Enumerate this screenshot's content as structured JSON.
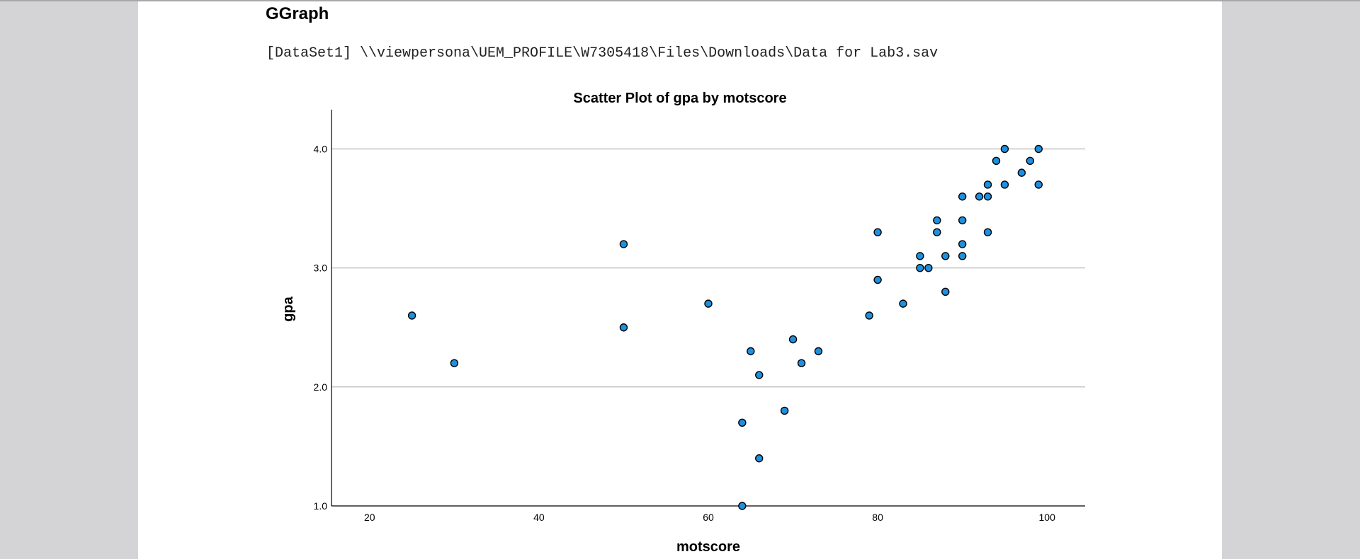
{
  "window": {
    "heading": "GGraph",
    "dataset_path": "[DataSet1] \\\\viewpersona\\UEM_PROFILE\\W7305418\\Files\\Downloads\\Data for Lab3.sav"
  },
  "colors": {
    "marker_fill": "#1e90e0",
    "marker_stroke": "#000000",
    "gridline": "#b4b4b4",
    "axis": "#000000",
    "page": "#ffffff",
    "outside": "#d4d4d6"
  },
  "chart_data": {
    "type": "scatter",
    "title": "Scatter Plot of gpa by motscore",
    "xlabel": "motscore",
    "ylabel": "gpa",
    "xlim": [
      15.5,
      104.5
    ],
    "ylim": [
      1.0,
      4.33
    ],
    "xticks": [
      20,
      40,
      60,
      80,
      100
    ],
    "yticks": [
      1.0,
      2.0,
      3.0,
      4.0
    ],
    "xtick_labels": [
      "20",
      "40",
      "60",
      "80",
      "100"
    ],
    "ytick_labels": [
      "1.0",
      "2.0",
      "3.0",
      "4.0"
    ],
    "grid": "horizontal",
    "legend": "none",
    "points": [
      {
        "x": 25,
        "y": 2.6
      },
      {
        "x": 30,
        "y": 2.2
      },
      {
        "x": 50,
        "y": 3.2
      },
      {
        "x": 50,
        "y": 2.5
      },
      {
        "x": 60,
        "y": 2.7
      },
      {
        "x": 64,
        "y": 1.7
      },
      {
        "x": 64,
        "y": 1.0
      },
      {
        "x": 65,
        "y": 2.3
      },
      {
        "x": 66,
        "y": 2.1
      },
      {
        "x": 66,
        "y": 1.4
      },
      {
        "x": 69,
        "y": 1.8
      },
      {
        "x": 70,
        "y": 2.4
      },
      {
        "x": 71,
        "y": 2.2
      },
      {
        "x": 73,
        "y": 2.3
      },
      {
        "x": 79,
        "y": 2.6
      },
      {
        "x": 80,
        "y": 3.3
      },
      {
        "x": 80,
        "y": 2.9
      },
      {
        "x": 83,
        "y": 2.7
      },
      {
        "x": 85,
        "y": 3.1
      },
      {
        "x": 85,
        "y": 3.0
      },
      {
        "x": 86,
        "y": 3.0
      },
      {
        "x": 87,
        "y": 3.4
      },
      {
        "x": 87,
        "y": 3.3
      },
      {
        "x": 88,
        "y": 3.1
      },
      {
        "x": 88,
        "y": 2.8
      },
      {
        "x": 90,
        "y": 3.6
      },
      {
        "x": 90,
        "y": 3.4
      },
      {
        "x": 90,
        "y": 3.2
      },
      {
        "x": 90,
        "y": 3.1
      },
      {
        "x": 92,
        "y": 3.6
      },
      {
        "x": 93,
        "y": 3.7
      },
      {
        "x": 93,
        "y": 3.6
      },
      {
        "x": 93,
        "y": 3.3
      },
      {
        "x": 94,
        "y": 3.9
      },
      {
        "x": 95,
        "y": 4.0
      },
      {
        "x": 95,
        "y": 3.7
      },
      {
        "x": 97,
        "y": 3.8
      },
      {
        "x": 98,
        "y": 3.9
      },
      {
        "x": 99,
        "y": 4.0
      },
      {
        "x": 99,
        "y": 3.7
      }
    ]
  }
}
